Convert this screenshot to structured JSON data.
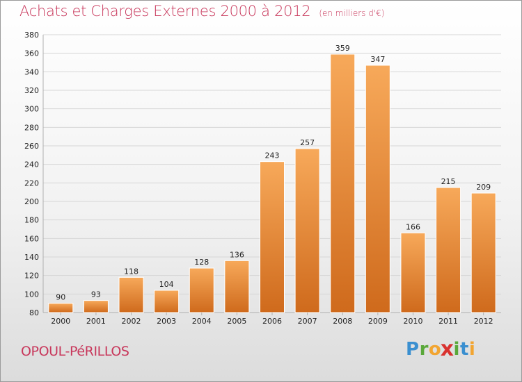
{
  "header": {
    "title": "Achats et Charges Externes 2000 à 2012",
    "subtitle": "(en milliers d'€)"
  },
  "footer": {
    "place": "OPOUL-PéRILLOS",
    "logo": {
      "letters": [
        "P",
        "r",
        "o",
        "x",
        "i",
        "t",
        "i"
      ],
      "colors": [
        "#3a8fd0",
        "#5aa83a",
        "#f2a531",
        "#d9322f",
        "#5aa83a",
        "#3a8fd0",
        "#f2a531"
      ]
    }
  },
  "colors": {
    "bar_top": "#f7a95a",
    "bar_bottom": "#cf6a1c",
    "grid": "#d6d6d6",
    "axis_text": "#222222"
  },
  "chart_data": {
    "type": "bar",
    "categories": [
      "2000",
      "2001",
      "2002",
      "2003",
      "2004",
      "2005",
      "2006",
      "2007",
      "2008",
      "2009",
      "2010",
      "2011",
      "2012"
    ],
    "values": [
      90,
      93,
      118,
      104,
      128,
      136,
      243,
      257,
      359,
      347,
      166,
      215,
      209
    ],
    "ylim": [
      80,
      380
    ],
    "yticks": [
      80,
      100,
      120,
      140,
      160,
      180,
      200,
      220,
      240,
      260,
      280,
      300,
      320,
      340,
      360,
      380
    ],
    "grid": true,
    "title": "Achats et Charges Externes 2000 à 2012",
    "subtitle": "(en milliers d'€)"
  }
}
